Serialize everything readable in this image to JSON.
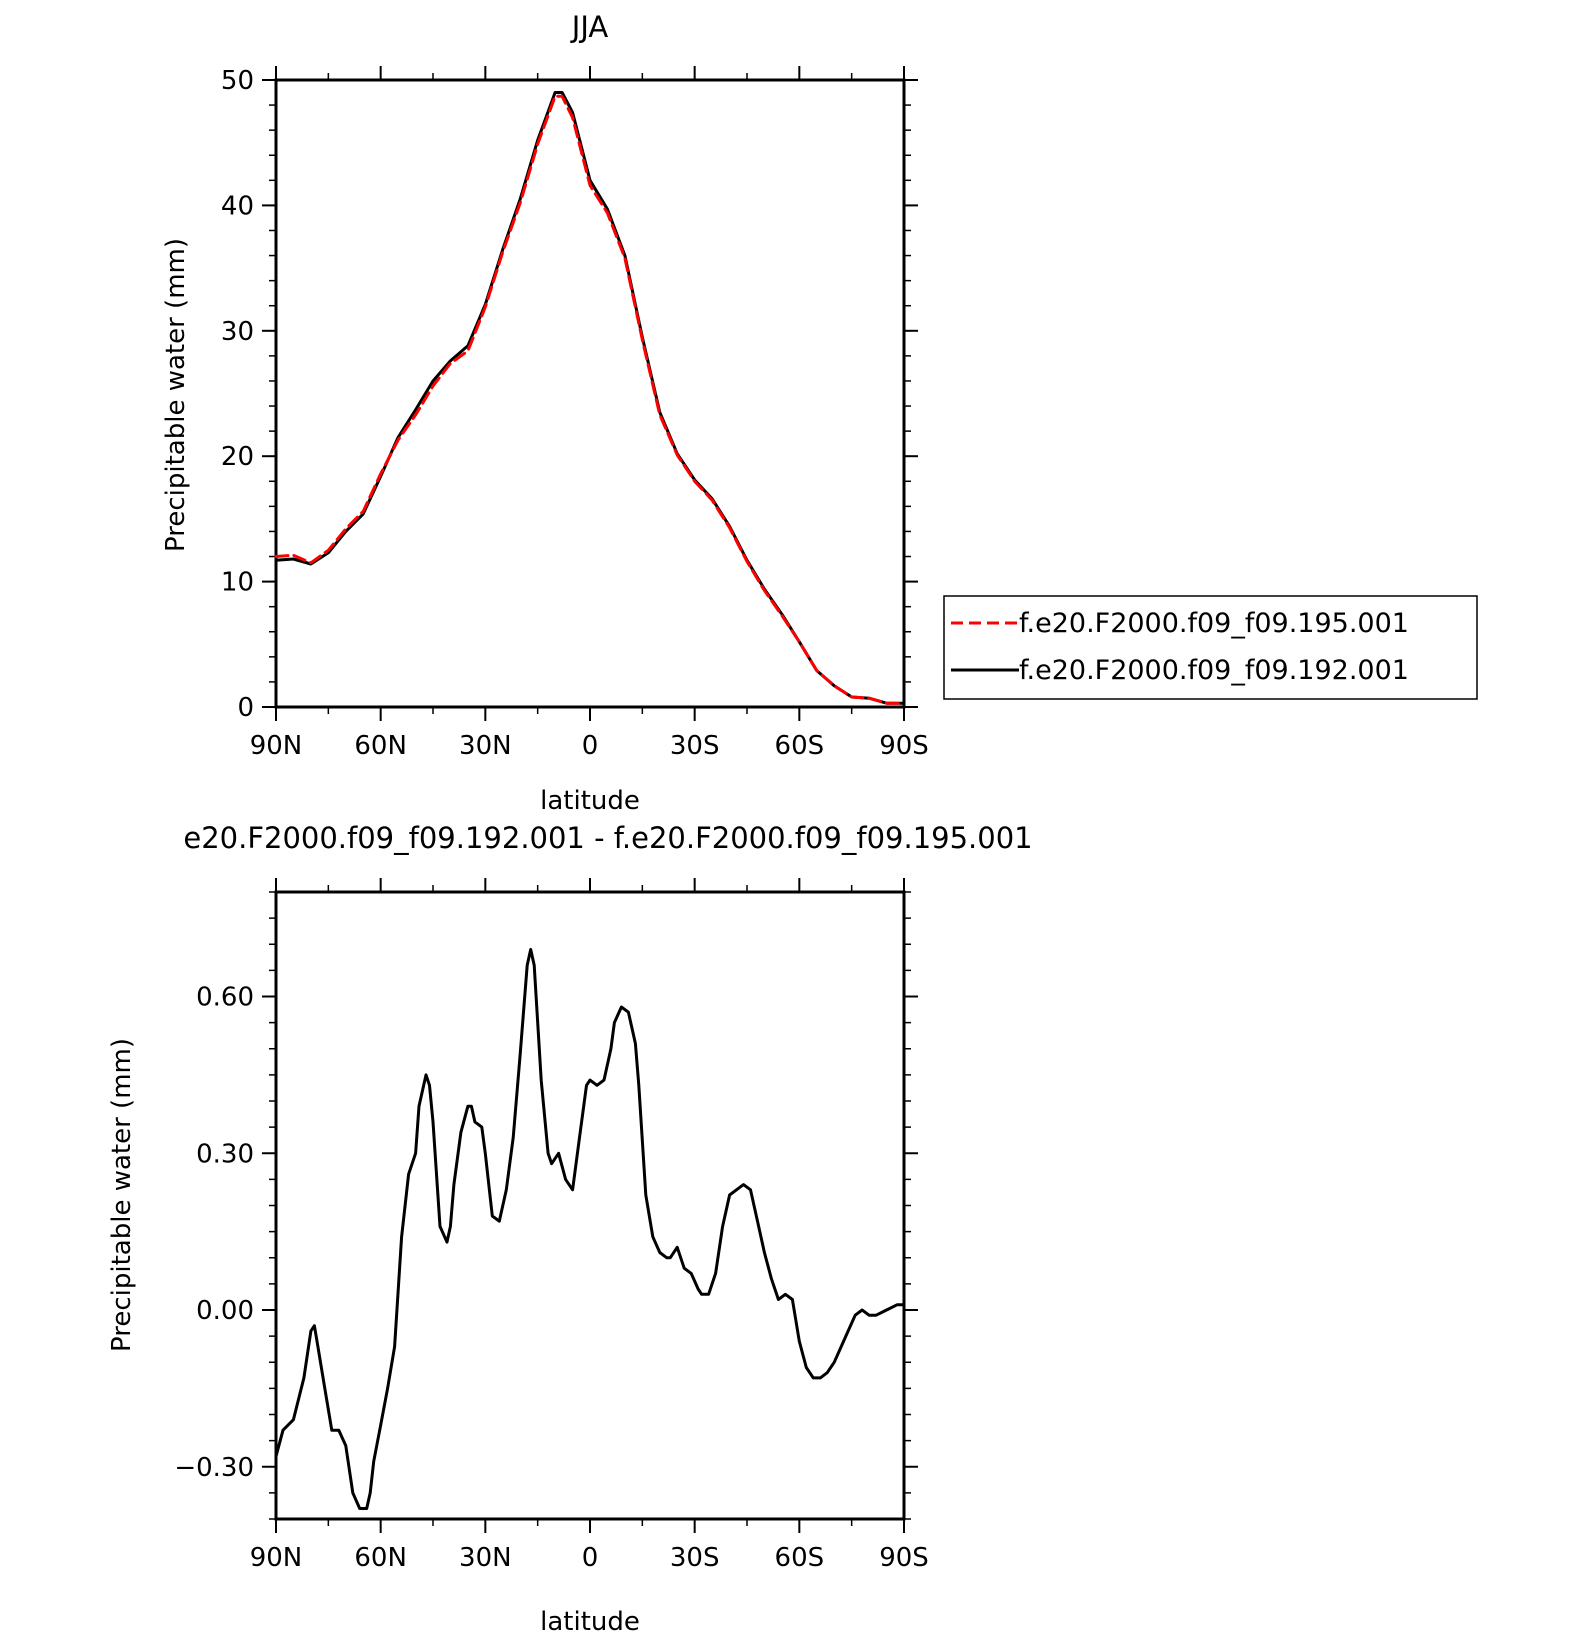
{
  "chart_data": [
    {
      "type": "line",
      "title": "JJA",
      "xlabel": "latitude",
      "ylabel": "Precipitable water (mm)",
      "xlim": [
        90,
        -90
      ],
      "ylim": [
        0,
        50
      ],
      "x_ticks": [
        90,
        60,
        30,
        0,
        -30,
        -60,
        -90
      ],
      "x_tick_labels": [
        "90N",
        "60N",
        "30N",
        "0",
        "30S",
        "60S",
        "90S"
      ],
      "y_ticks": [
        0,
        10,
        20,
        30,
        40,
        50
      ],
      "y_tick_labels": [
        "0",
        "10",
        "20",
        "30",
        "40",
        "50"
      ],
      "legend_position": "right",
      "series": [
        {
          "name": "f.e20.F2000.f09_f09.195.001",
          "color": "#ff0000",
          "dash": "dashed",
          "x": [
            90,
            85,
            80,
            75,
            70,
            65,
            60,
            55,
            50,
            45,
            40,
            35,
            30,
            25,
            20,
            15,
            10,
            8,
            5,
            0,
            -5,
            -10,
            -15,
            -20,
            -25,
            -30,
            -35,
            -40,
            -45,
            -50,
            -55,
            -60,
            -65,
            -70,
            -75,
            -80,
            -85,
            -90
          ],
          "y": [
            12.0,
            12.1,
            11.5,
            12.5,
            14.2,
            15.6,
            18.6,
            21.3,
            23.3,
            25.6,
            27.4,
            28.4,
            31.9,
            36.3,
            40.2,
            44.9,
            48.7,
            48.7,
            47.0,
            41.6,
            39.4,
            35.8,
            29.3,
            23.3,
            20.1,
            18.0,
            16.5,
            14.3,
            11.6,
            9.3,
            7.3,
            5.2,
            2.9,
            1.7,
            0.8,
            0.7,
            0.3,
            0.3
          ]
        },
        {
          "name": "f.e20.F2000.f09_f09.192.001",
          "color": "#000000",
          "dash": "solid",
          "x": [
            90,
            85,
            80,
            75,
            70,
            65,
            60,
            55,
            50,
            45,
            40,
            35,
            30,
            25,
            20,
            15,
            10,
            8,
            5,
            0,
            -5,
            -10,
            -15,
            -20,
            -25,
            -30,
            -35,
            -40,
            -45,
            -50,
            -55,
            -60,
            -65,
            -70,
            -75,
            -80,
            -85,
            -90
          ],
          "y": [
            11.7,
            11.8,
            11.4,
            12.3,
            14.0,
            15.4,
            18.4,
            21.5,
            23.7,
            26.0,
            27.6,
            28.8,
            32.1,
            36.5,
            40.5,
            45.2,
            49.0,
            49.0,
            47.4,
            42.0,
            39.7,
            36.0,
            29.5,
            23.5,
            20.2,
            18.1,
            16.6,
            14.4,
            11.7,
            9.4,
            7.4,
            5.2,
            2.9,
            1.7,
            0.8,
            0.7,
            0.3,
            0.3
          ]
        }
      ]
    },
    {
      "type": "line",
      "title": "e20.F2000.f09_f09.192.001 - f.e20.F2000.f09_f09.195.001",
      "xlabel": "latitude",
      "ylabel": "Precipitable water (mm)",
      "xlim": [
        90,
        -90
      ],
      "ylim": [
        -0.4,
        0.8
      ],
      "x_ticks": [
        90,
        60,
        30,
        0,
        -30,
        -60,
        -90
      ],
      "x_tick_labels": [
        "90N",
        "60N",
        "30N",
        "0",
        "30S",
        "60S",
        "90S"
      ],
      "y_ticks": [
        -0.3,
        0.0,
        0.3,
        0.6
      ],
      "y_tick_labels": [
        "−0.30",
        "0.00",
        "0.30",
        "0.60"
      ],
      "series": [
        {
          "color": "#000000",
          "dash": "solid",
          "x": [
            90,
            88,
            85,
            82,
            80,
            79,
            78,
            76,
            74,
            72,
            70,
            68,
            66,
            64,
            63,
            62,
            60,
            58,
            56,
            54,
            52,
            50,
            49,
            47,
            46,
            45,
            43,
            41,
            40,
            39,
            37,
            35,
            34,
            33,
            31,
            30,
            28,
            26,
            24,
            22,
            20,
            18,
            17,
            16,
            14,
            12,
            11,
            9,
            7,
            5,
            3,
            1,
            0,
            -2,
            -4,
            -6,
            -7,
            -9,
            -11,
            -13,
            -14,
            -16,
            -18,
            -20,
            -22,
            -23,
            -25,
            -27,
            -29,
            -31,
            -32,
            -34,
            -36,
            -38,
            -40,
            -42,
            -44,
            -46,
            -48,
            -50,
            -52,
            -54,
            -56,
            -58,
            -60,
            -62,
            -64,
            -66,
            -68,
            -70,
            -72,
            -74,
            -76,
            -78,
            -80,
            -82,
            -85,
            -88,
            -90
          ],
          "y": [
            -0.28,
            -0.23,
            -0.21,
            -0.13,
            -0.04,
            -0.03,
            -0.07,
            -0.15,
            -0.23,
            -0.23,
            -0.26,
            -0.35,
            -0.38,
            -0.38,
            -0.35,
            -0.29,
            -0.22,
            -0.15,
            -0.07,
            0.14,
            0.26,
            0.3,
            0.39,
            0.45,
            0.43,
            0.36,
            0.16,
            0.13,
            0.16,
            0.24,
            0.34,
            0.39,
            0.39,
            0.36,
            0.35,
            0.3,
            0.18,
            0.17,
            0.23,
            0.33,
            0.49,
            0.66,
            0.69,
            0.66,
            0.44,
            0.3,
            0.28,
            0.3,
            0.25,
            0.23,
            0.33,
            0.43,
            0.44,
            0.43,
            0.44,
            0.5,
            0.55,
            0.58,
            0.57,
            0.51,
            0.43,
            0.22,
            0.14,
            0.11,
            0.1,
            0.1,
            0.12,
            0.08,
            0.07,
            0.04,
            0.03,
            0.03,
            0.07,
            0.16,
            0.22,
            0.23,
            0.24,
            0.23,
            0.17,
            0.11,
            0.06,
            0.02,
            0.03,
            0.02,
            -0.06,
            -0.11,
            -0.13,
            -0.13,
            -0.12,
            -0.1,
            -0.07,
            -0.04,
            -0.01,
            0.0,
            -0.01,
            -0.01,
            0.0,
            0.01,
            0.01
          ]
        }
      ]
    }
  ]
}
